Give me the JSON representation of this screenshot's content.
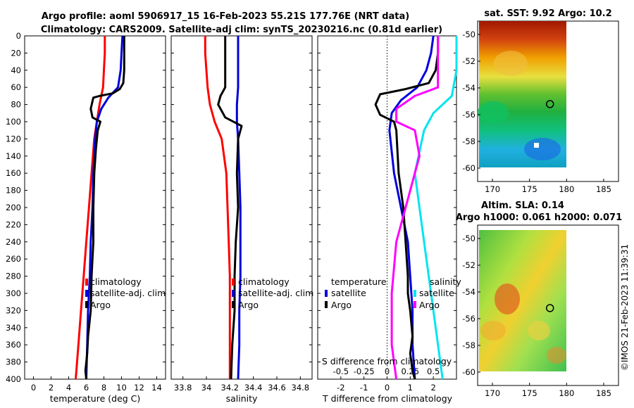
{
  "header": {
    "title_line1": "Argo profile: aoml 5906917_15 16-Feb-2023 55.21S 177.76E (NRT data)",
    "title_line2": "Climatology: CARS2009. Satellite-adj clim: synTS_20230216.nc (0.81d earlier)"
  },
  "credit": "©IMOS 21-Feb-2023 11:39:31",
  "colors": {
    "climatology": "#ff0000",
    "satellite": "#0000dd",
    "argo": "#000000",
    "cyan": "#00e5ee",
    "magenta": "#ff00ff"
  },
  "chart_data": [
    {
      "id": "temperature-profile",
      "type": "line",
      "xlabel": "temperature (deg C)",
      "xlim": [
        -1,
        15
      ],
      "ylim": [
        0,
        400
      ],
      "xticks": [
        "0",
        "2",
        "4",
        "6",
        "8",
        "10",
        "12",
        "14"
      ],
      "yticks": [
        "0",
        "20",
        "40",
        "60",
        "80",
        "100",
        "120",
        "140",
        "160",
        "180",
        "200",
        "220",
        "240",
        "260",
        "280",
        "300",
        "320",
        "340",
        "360",
        "380",
        "400"
      ],
      "legend": [
        "climatology",
        "satellite-adj. clim",
        "Argo"
      ],
      "series": [
        {
          "name": "climatology",
          "color": "#ff0000",
          "points": [
            [
              8.1,
              0
            ],
            [
              8.1,
              20
            ],
            [
              8.0,
              40
            ],
            [
              7.9,
              60
            ],
            [
              7.5,
              80
            ],
            [
              7.2,
              100
            ],
            [
              6.9,
              120
            ],
            [
              6.6,
              160
            ],
            [
              6.3,
              200
            ],
            [
              6.0,
              240
            ],
            [
              5.7,
              280
            ],
            [
              5.4,
              320
            ],
            [
              5.1,
              360
            ],
            [
              4.8,
              400
            ]
          ]
        },
        {
          "name": "satellite-adj. clim",
          "color": "#0000dd",
          "points": [
            [
              10.1,
              0
            ],
            [
              10.0,
              20
            ],
            [
              9.9,
              40
            ],
            [
              9.6,
              60
            ],
            [
              8.5,
              72
            ],
            [
              7.7,
              85
            ],
            [
              7.2,
              100
            ],
            [
              7.0,
              120
            ],
            [
              6.8,
              160
            ],
            [
              6.7,
              200
            ],
            [
              6.5,
              240
            ],
            [
              6.4,
              280
            ],
            [
              6.2,
              320
            ],
            [
              6.1,
              360
            ],
            [
              6.0,
              400
            ]
          ]
        },
        {
          "name": "Argo",
          "color": "#000000",
          "points": [
            [
              10.3,
              0
            ],
            [
              10.3,
              20
            ],
            [
              10.3,
              40
            ],
            [
              10.2,
              55
            ],
            [
              9.8,
              62
            ],
            [
              9.0,
              67
            ],
            [
              7.5,
              70
            ],
            [
              6.8,
              72
            ],
            [
              6.5,
              85
            ],
            [
              6.7,
              95
            ],
            [
              7.6,
              100
            ],
            [
              7.3,
              110
            ],
            [
              7.1,
              130
            ],
            [
              6.9,
              160
            ],
            [
              6.8,
              200
            ],
            [
              6.8,
              240
            ],
            [
              6.6,
              280
            ],
            [
              6.5,
              320
            ],
            [
              6.2,
              350
            ],
            [
              6.1,
              370
            ],
            [
              5.9,
              390
            ],
            [
              6.0,
              400
            ]
          ]
        }
      ]
    },
    {
      "id": "salinity-profile",
      "type": "line",
      "xlabel": "salinity",
      "xlim": [
        33.7,
        34.9
      ],
      "ylim": [
        0,
        400
      ],
      "xticks": [
        "33.8",
        "34",
        "34.2",
        "34.4",
        "34.6",
        "34.8"
      ],
      "legend": [
        "climatology",
        "satellite-adj. clim",
        "Argo"
      ],
      "series": [
        {
          "name": "climatology",
          "color": "#ff0000",
          "points": [
            [
              33.99,
              0
            ],
            [
              33.99,
              20
            ],
            [
              34.0,
              40
            ],
            [
              34.01,
              60
            ],
            [
              34.03,
              80
            ],
            [
              34.07,
              100
            ],
            [
              34.13,
              120
            ],
            [
              34.17,
              160
            ],
            [
              34.18,
              200
            ],
            [
              34.19,
              240
            ],
            [
              34.2,
              280
            ],
            [
              34.2,
              320
            ],
            [
              34.2,
              360
            ],
            [
              34.2,
              400
            ]
          ]
        },
        {
          "name": "satellite-adj. clim",
          "color": "#0000dd",
          "points": [
            [
              34.27,
              0
            ],
            [
              34.27,
              20
            ],
            [
              34.27,
              40
            ],
            [
              34.27,
              60
            ],
            [
              34.26,
              80
            ],
            [
              34.26,
              100
            ],
            [
              34.27,
              120
            ],
            [
              34.28,
              160
            ],
            [
              34.29,
              200
            ],
            [
              34.29,
              240
            ],
            [
              34.29,
              280
            ],
            [
              34.28,
              320
            ],
            [
              34.28,
              360
            ],
            [
              34.27,
              400
            ]
          ]
        },
        {
          "name": "Argo",
          "color": "#000000",
          "points": [
            [
              34.16,
              0
            ],
            [
              34.16,
              20
            ],
            [
              34.16,
              40
            ],
            [
              34.16,
              60
            ],
            [
              34.12,
              70
            ],
            [
              34.1,
              80
            ],
            [
              34.16,
              95
            ],
            [
              34.3,
              105
            ],
            [
              34.27,
              120
            ],
            [
              34.26,
              160
            ],
            [
              34.27,
              200
            ],
            [
              34.25,
              240
            ],
            [
              34.24,
              280
            ],
            [
              34.24,
              320
            ],
            [
              34.22,
              360
            ],
            [
              34.21,
              400
            ]
          ]
        }
      ]
    },
    {
      "id": "difference-profile",
      "type": "line",
      "xlabel": "T difference from climatology",
      "xlabel2": "S difference from climatology",
      "xlim": [
        -3,
        3
      ],
      "ylim": [
        0,
        400
      ],
      "xticks": [
        "-2",
        "-1",
        "0",
        "1",
        "2"
      ],
      "xticks2": [
        "-0.5",
        "-0.25",
        "0",
        "0.25",
        "0.5"
      ],
      "legend_left_title": "temperature",
      "legend_right_title": "salinity",
      "legend_left": [
        "satellite",
        "Argo"
      ],
      "legend_right": [
        "satellite",
        "Argo"
      ],
      "series": [
        {
          "name": "T satellite",
          "color": "#0000dd",
          "points": [
            [
              2.0,
              0
            ],
            [
              1.9,
              20
            ],
            [
              1.7,
              40
            ],
            [
              1.3,
              60
            ],
            [
              0.6,
              75
            ],
            [
              0.2,
              90
            ],
            [
              0.1,
              110
            ],
            [
              0.3,
              160
            ],
            [
              0.6,
              200
            ],
            [
              0.9,
              240
            ],
            [
              1.0,
              280
            ],
            [
              1.1,
              320
            ],
            [
              1.1,
              360
            ],
            [
              1.2,
              400
            ]
          ]
        },
        {
          "name": "T Argo",
          "color": "#000000",
          "points": [
            [
              2.2,
              0
            ],
            [
              2.2,
              20
            ],
            [
              2.1,
              40
            ],
            [
              1.8,
              55
            ],
            [
              0.8,
              62
            ],
            [
              -0.3,
              68
            ],
            [
              -0.5,
              80
            ],
            [
              -0.3,
              92
            ],
            [
              0.3,
              100
            ],
            [
              0.4,
              110
            ],
            [
              0.5,
              160
            ],
            [
              0.7,
              200
            ],
            [
              0.8,
              240
            ],
            [
              0.9,
              280
            ],
            [
              0.9,
              300
            ],
            [
              1.0,
              320
            ],
            [
              1.1,
              350
            ],
            [
              1.0,
              370
            ],
            [
              1.1,
              390
            ],
            [
              1.2,
              400
            ]
          ]
        },
        {
          "name": "S satellite",
          "color": "#00e5ee",
          "points": [
            [
              0.75,
              0
            ],
            [
              0.75,
              40
            ],
            [
              0.7,
              70
            ],
            [
              0.5,
              90
            ],
            [
              0.4,
              110
            ],
            [
              0.3,
              160
            ],
            [
              0.4,
              240
            ],
            [
              0.5,
              320
            ],
            [
              0.6,
              400
            ]
          ]
        },
        {
          "name": "S Argo",
          "color": "#ff00ff",
          "points": [
            [
              0.55,
              0
            ],
            [
              0.55,
              40
            ],
            [
              0.55,
              60
            ],
            [
              0.3,
              70
            ],
            [
              0.1,
              85
            ],
            [
              0.1,
              100
            ],
            [
              0.3,
              110
            ],
            [
              0.35,
              140
            ],
            [
              0.3,
              160
            ],
            [
              0.2,
              200
            ],
            [
              0.1,
              240
            ],
            [
              0.05,
              300
            ],
            [
              0.05,
              360
            ],
            [
              0.1,
              400
            ]
          ]
        }
      ]
    },
    {
      "id": "sst-map",
      "type": "heatmap",
      "title": "sat. SST: 9.92 Argo: 10.2",
      "xlim": [
        168,
        187
      ],
      "ylim": [
        -61,
        -49
      ],
      "xticks": [
        "170",
        "175",
        "180",
        "185"
      ],
      "yticks": [
        "-50",
        "-52",
        "-54",
        "-56",
        "-58",
        "-60"
      ],
      "argo_position": [
        177.76,
        -55.21
      ]
    },
    {
      "id": "sla-map",
      "type": "heatmap",
      "title_line1": "Altim. SLA: 0.14",
      "title_line2": "Argo h1000: 0.061 h2000: 0.071",
      "xlim": [
        168,
        187
      ],
      "ylim": [
        -61,
        -49
      ],
      "xticks": [
        "170",
        "175",
        "180",
        "185"
      ],
      "yticks": [
        "-50",
        "-52",
        "-54",
        "-56",
        "-58",
        "-60"
      ],
      "argo_position": [
        177.76,
        -55.21
      ]
    }
  ]
}
